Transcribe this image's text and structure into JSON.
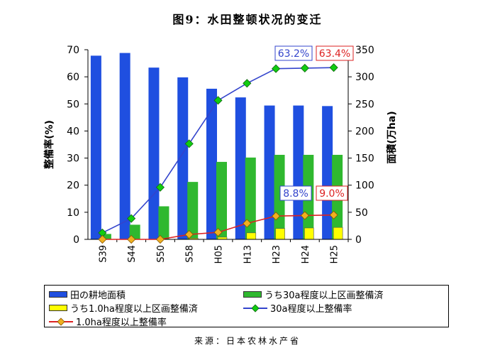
{
  "title": "图9：水田整顿状况的变迁",
  "source": "来源：日本农林水产省",
  "chart_data": {
    "type": "bar",
    "categories": [
      "S39",
      "S44",
      "S50",
      "S58",
      "H05",
      "H13",
      "H23",
      "H24",
      "H25"
    ],
    "y_left": {
      "label": "整備率(%)",
      "range": [
        0,
        70
      ],
      "ticks": [
        0,
        10,
        20,
        30,
        40,
        50,
        60,
        70
      ]
    },
    "y_right": {
      "label": "面積(万ha)",
      "range": [
        0,
        350
      ],
      "ticks": [
        0,
        50,
        100,
        150,
        200,
        250,
        300,
        350
      ]
    },
    "series": [
      {
        "name": "田の耕地面積",
        "type": "bar",
        "axis": "right",
        "color": "#1f4fe0",
        "values": [
          339,
          344,
          317,
          299,
          278,
          262,
          247,
          247,
          246
        ]
      },
      {
        "name": "うち30a程度以上区画整備済",
        "type": "bar",
        "axis": "right",
        "color": "#2fb82f",
        "values": [
          10,
          27,
          61,
          106,
          143,
          151,
          156,
          156,
          156
        ]
      },
      {
        "name": "うち1.0ha程度以上区画整備済",
        "type": "bar",
        "axis": "right",
        "color": "#ffff00",
        "values": [
          0,
          0,
          0,
          2,
          4,
          12,
          20,
          21,
          22
        ]
      },
      {
        "name": "30a程度以上整備率",
        "type": "line",
        "axis": "left",
        "color": "#3344cc",
        "marker": "#11cc11",
        "values": [
          2.4,
          7.7,
          19.2,
          35.3,
          51.3,
          57.6,
          63.0,
          63.2,
          63.4
        ]
      },
      {
        "name": "1.0ha程度以上整備率",
        "type": "line",
        "axis": "left",
        "color": "#dd2222",
        "marker": "#f0b020",
        "values": [
          0.0,
          0.0,
          0.0,
          1.8,
          2.6,
          5.9,
          8.6,
          8.8,
          9.0
        ]
      }
    ],
    "annotations": [
      {
        "text": "63.2%",
        "color": "#3344cc"
      },
      {
        "text": "63.4%",
        "color": "#dd2222"
      },
      {
        "text": "8.8%",
        "color": "#3344cc"
      },
      {
        "text": "9.0%",
        "color": "#dd2222"
      }
    ],
    "legend": "bottom"
  }
}
